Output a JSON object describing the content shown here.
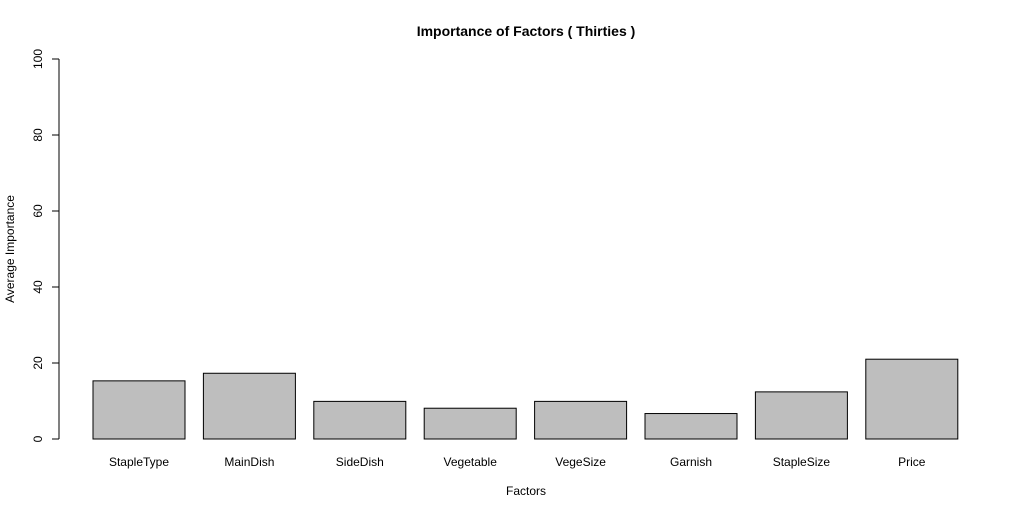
{
  "chart_data": {
    "type": "bar",
    "title": "Importance of Factors ( Thirties )",
    "xlabel": "Factors",
    "ylabel": "Average Importance",
    "categories": [
      "StapleType",
      "MainDish",
      "SideDish",
      "Vegetable",
      "VegeSize",
      "Garnish",
      "StapleSize",
      "Price"
    ],
    "values": [
      15.3,
      17.3,
      9.9,
      8.1,
      9.9,
      6.7,
      12.4,
      21.0
    ],
    "ylim": [
      0,
      100
    ],
    "yticks": [
      "0",
      "20",
      "40",
      "60",
      "80",
      "100"
    ],
    "bar_color": "#bebebe",
    "grid": false
  }
}
